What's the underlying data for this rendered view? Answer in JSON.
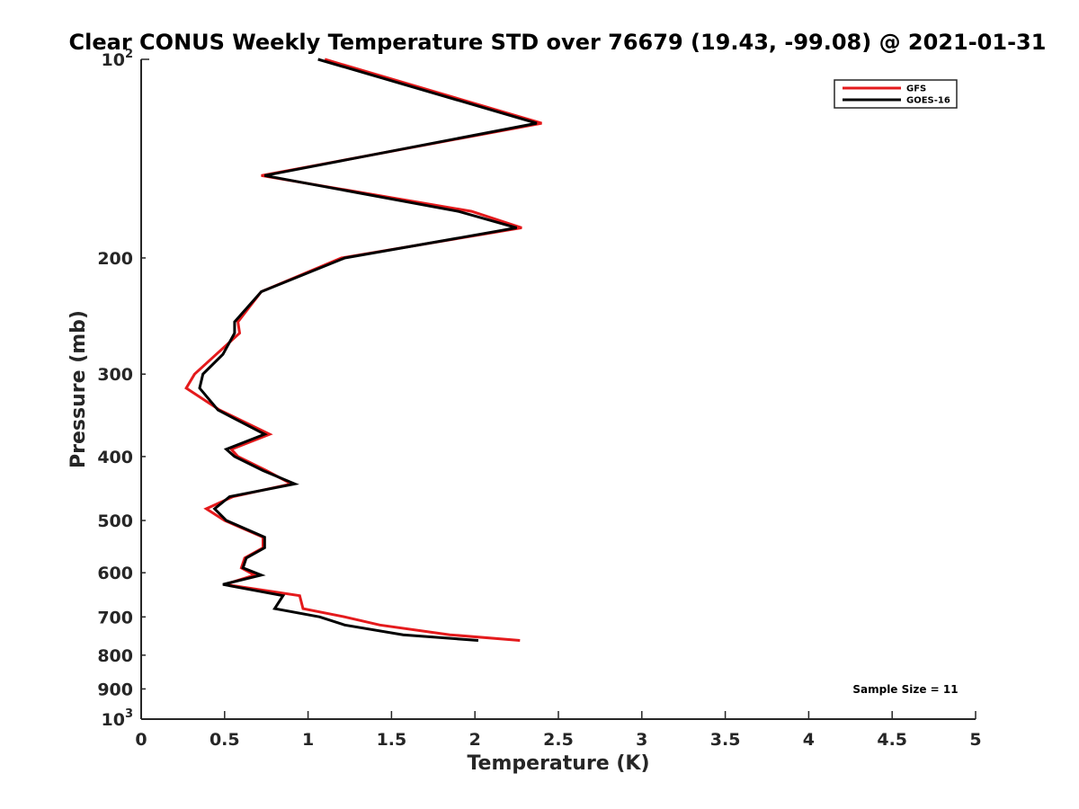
{
  "chart_data": {
    "type": "line",
    "title": "Clear CONUS Weekly Temperature STD over 76679 (19.43, -99.08) @ 2021-01-31",
    "xlabel": "Temperature (K)",
    "ylabel": "Pressure (mb)",
    "xlim": [
      0,
      5
    ],
    "ylim": [
      100,
      1000
    ],
    "y_scale": "log",
    "y_reversed": true,
    "x_ticks": [
      "0",
      "0.5",
      "1",
      "1.5",
      "2",
      "2.5",
      "3",
      "3.5",
      "4",
      "4.5",
      "5"
    ],
    "y_ticks": [
      {
        "value": 100,
        "base": "10",
        "exp": "2"
      },
      {
        "value": 200,
        "label": "200"
      },
      {
        "value": 300,
        "label": "300"
      },
      {
        "value": 400,
        "label": "400"
      },
      {
        "value": 500,
        "label": "500"
      },
      {
        "value": 600,
        "label": "600"
      },
      {
        "value": 700,
        "label": "700"
      },
      {
        "value": 800,
        "label": "800"
      },
      {
        "value": 900,
        "label": "900"
      },
      {
        "value": 1000,
        "base": "10",
        "exp": "3"
      }
    ],
    "legend_position": "top-right",
    "annotation": "Sample Size = 11",
    "grid": false,
    "series": [
      {
        "name": "GFS",
        "color": "#e41a1c",
        "points": [
          [
            1.1,
            100
          ],
          [
            2.4,
            125
          ],
          [
            0.72,
            150
          ],
          [
            1.98,
            170
          ],
          [
            2.28,
            180
          ],
          [
            1.2,
            200
          ],
          [
            0.72,
            225
          ],
          [
            0.58,
            250
          ],
          [
            0.59,
            260
          ],
          [
            0.45,
            280
          ],
          [
            0.32,
            300
          ],
          [
            0.27,
            315
          ],
          [
            0.47,
            340
          ],
          [
            0.77,
            370
          ],
          [
            0.54,
            390
          ],
          [
            0.58,
            400
          ],
          [
            0.75,
            420
          ],
          [
            0.9,
            440
          ],
          [
            0.55,
            460
          ],
          [
            0.39,
            480
          ],
          [
            0.5,
            500
          ],
          [
            0.73,
            530
          ],
          [
            0.73,
            550
          ],
          [
            0.62,
            570
          ],
          [
            0.6,
            590
          ],
          [
            0.68,
            605
          ],
          [
            0.5,
            625
          ],
          [
            0.95,
            650
          ],
          [
            0.97,
            680
          ],
          [
            1.22,
            700
          ],
          [
            1.43,
            720
          ],
          [
            1.85,
            745
          ],
          [
            2.27,
            760
          ]
        ]
      },
      {
        "name": "GOES-16",
        "color": "#000000",
        "points": [
          [
            1.06,
            100
          ],
          [
            2.37,
            125
          ],
          [
            0.74,
            150
          ],
          [
            1.9,
            170
          ],
          [
            2.25,
            180
          ],
          [
            1.22,
            200
          ],
          [
            0.72,
            225
          ],
          [
            0.56,
            250
          ],
          [
            0.56,
            260
          ],
          [
            0.49,
            280
          ],
          [
            0.37,
            300
          ],
          [
            0.35,
            315
          ],
          [
            0.46,
            340
          ],
          [
            0.74,
            370
          ],
          [
            0.51,
            390
          ],
          [
            0.56,
            400
          ],
          [
            0.73,
            420
          ],
          [
            0.92,
            440
          ],
          [
            0.53,
            460
          ],
          [
            0.44,
            480
          ],
          [
            0.51,
            500
          ],
          [
            0.74,
            530
          ],
          [
            0.74,
            550
          ],
          [
            0.63,
            570
          ],
          [
            0.61,
            590
          ],
          [
            0.72,
            605
          ],
          [
            0.49,
            625
          ],
          [
            0.85,
            650
          ],
          [
            0.8,
            680
          ],
          [
            1.07,
            700
          ],
          [
            1.22,
            720
          ],
          [
            1.57,
            745
          ],
          [
            2.02,
            760
          ]
        ]
      }
    ]
  }
}
